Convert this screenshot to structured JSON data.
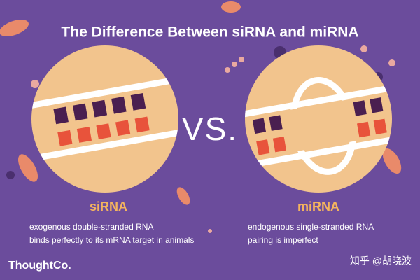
{
  "header": {
    "title": "The Difference Between siRNA and miRNA"
  },
  "separator": "VS.",
  "panels": [
    {
      "label": "siRNA",
      "lines": [
        "exogenous double-stranded RNA",
        "binds perfectly to its mRNA target in animals"
      ]
    },
    {
      "label": "miRNA",
      "lines": [
        "endogenous single-stranded RNA",
        "pairing is imperfect"
      ]
    }
  ],
  "footer": {
    "logo": "ThoughtCo.",
    "watermark": "知乎 @胡晓波"
  }
}
